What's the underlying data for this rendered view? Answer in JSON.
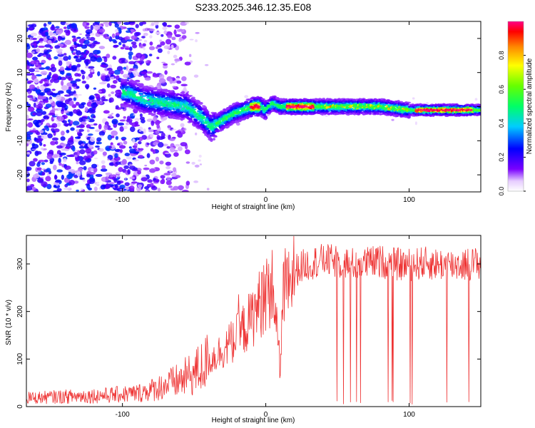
{
  "figure": {
    "title": "S233.2025.346.12.35.E08"
  },
  "chart_data": [
    {
      "type": "heatmap",
      "xlabel": "Height of straight line (km)",
      "ylabel": "Frequency (Hz)",
      "xlim": [
        -167,
        150
      ],
      "ylim": [
        -25,
        25
      ],
      "xticks": [
        -100,
        0,
        100
      ],
      "yticks": [
        -20,
        -10,
        0,
        10,
        20
      ],
      "colorbar": {
        "label": "Normalized spectral amplitude",
        "range": [
          0,
          1
        ],
        "ticks": [
          "0.0",
          "0.2",
          "0.4",
          "0.6",
          "0.8"
        ]
      },
      "ridge": {
        "description_x": [
          -95,
          -85,
          -70,
          -55,
          -45,
          -38,
          -30,
          -22,
          -15,
          -8,
          -3,
          0,
          5,
          10,
          20,
          40,
          60,
          80,
          100,
          120,
          150
        ],
        "center_hz": [
          4,
          2,
          1,
          0,
          -3,
          -6,
          -4,
          -2,
          -1,
          0,
          0,
          -1,
          1,
          0,
          0,
          0,
          0,
          0,
          -1,
          -1,
          -1
        ]
      }
    },
    {
      "type": "line",
      "xlabel": "Height of straight line (km)",
      "ylabel": "SNR (10 * v/v)",
      "xlim": [
        -167,
        150
      ],
      "ylim": [
        0,
        360
      ],
      "xticks": [
        -100,
        0,
        100
      ],
      "yticks": [
        0,
        100,
        200,
        300
      ],
      "series": [
        {
          "name": "SNR",
          "color": "#ee3333",
          "x": [
            -167,
            -150,
            -130,
            -110,
            -90,
            -80,
            -70,
            -60,
            -50,
            -40,
            -30,
            -20,
            -10,
            0,
            5,
            8,
            10,
            12,
            15,
            20,
            25,
            30,
            35,
            40,
            50,
            60,
            70,
            80,
            90,
            100,
            110,
            120,
            130,
            140,
            150
          ],
          "values": [
            18,
            20,
            22,
            24,
            28,
            35,
            45,
            55,
            70,
            95,
            120,
            145,
            185,
            240,
            250,
            160,
            80,
            230,
            265,
            285,
            295,
            300,
            305,
            308,
            305,
            300,
            302,
            305,
            300,
            298,
            302,
            300,
            298,
            300,
            302
          ]
        }
      ]
    }
  ]
}
